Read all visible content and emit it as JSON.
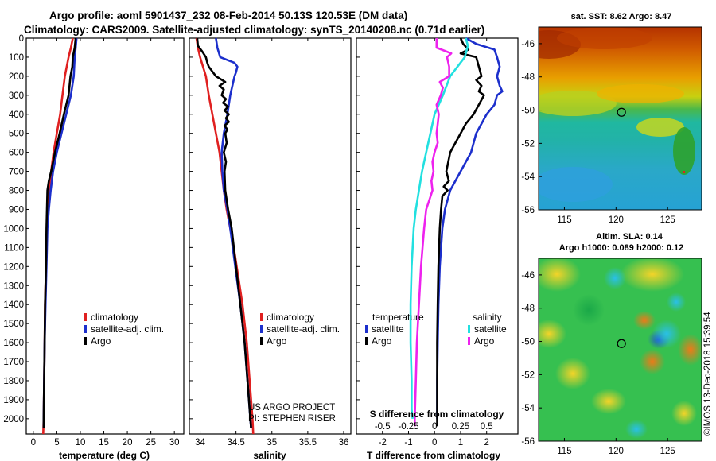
{
  "header": {
    "line1": "Argo profile: aoml 5901437_232 08-Feb-2014 50.13S 120.53E (DM data)",
    "line2": "Climatology: CARS2009. Satellite-adjusted climatology: synTS_20140208.nc (0.71d earlier)"
  },
  "colors": {
    "climatology": "#e02020",
    "satellite": "#1c2fcc",
    "argo": "#000000",
    "satellite_s": "#22e0e0",
    "argo_s": "#ee22ee"
  },
  "depth_axis": {
    "ticks": [
      0,
      100,
      200,
      300,
      400,
      500,
      600,
      700,
      800,
      900,
      1000,
      1100,
      1200,
      1300,
      1400,
      1500,
      1600,
      1700,
      1800,
      1900,
      2000
    ],
    "ylim": [
      0,
      2080
    ]
  },
  "chart_data": [
    {
      "type": "line",
      "id": "temperature",
      "xlabel": "temperature (deg C)",
      "ylabel": "",
      "xlim": [
        -1.5,
        32
      ],
      "xticks": [
        0,
        5,
        10,
        15,
        20,
        25,
        30
      ],
      "xtick_labels": [
        "0",
        "5",
        "10",
        "15",
        "20",
        "25",
        "30"
      ],
      "legend": [
        "climatology",
        "satellite-adj. clim.",
        "Argo"
      ],
      "series": [
        {
          "name": "climatology",
          "color": "#e02020",
          "depth": [
            0,
            50,
            100,
            200,
            300,
            400,
            500,
            600,
            700,
            800,
            900,
            1000,
            1200,
            1400,
            1600,
            1800,
            2000,
            2080
          ],
          "values": [
            8.4,
            8.0,
            7.5,
            6.7,
            6.2,
            5.7,
            5.0,
            4.3,
            3.8,
            3.4,
            3.1,
            2.9,
            2.7,
            2.5,
            2.4,
            2.3,
            2.2,
            2.1
          ]
        },
        {
          "name": "satellite-adj. clim.",
          "color": "#1c2fcc",
          "depth": [
            0,
            50,
            100,
            200,
            300,
            400,
            500,
            600,
            700,
            800,
            900,
            1000,
            1200,
            1400,
            1600,
            1800,
            2000,
            2050
          ],
          "values": [
            9.2,
            9.0,
            8.8,
            8.6,
            8.0,
            7.0,
            6.0,
            5.0,
            4.2,
            3.7,
            3.3,
            3.0,
            2.8,
            2.6,
            2.4,
            2.3,
            2.2,
            2.2
          ]
        },
        {
          "name": "Argo",
          "color": "#000000",
          "depth": [
            0,
            50,
            100,
            150,
            200,
            300,
            400,
            500,
            600,
            700,
            750,
            800,
            900,
            1000,
            1200,
            1400,
            1600,
            1800,
            2000,
            2050
          ],
          "values": [
            9.0,
            8.8,
            8.4,
            8.3,
            7.9,
            7.5,
            6.5,
            5.6,
            4.6,
            3.8,
            3.3,
            3.0,
            2.9,
            2.8,
            2.7,
            2.5,
            2.4,
            2.3,
            2.2,
            2.2
          ]
        }
      ]
    },
    {
      "type": "line",
      "id": "salinity",
      "xlabel": "salinity",
      "ylabel": "",
      "xlim": [
        33.85,
        36.1
      ],
      "xticks": [
        34,
        34.5,
        35,
        35.5,
        36
      ],
      "xtick_labels": [
        "34",
        "34.5",
        "35",
        "35.5",
        "36"
      ],
      "legend": [
        "climatology",
        "satellite-adj. clim.",
        "Argo"
      ],
      "series": [
        {
          "name": "climatology",
          "color": "#e02020",
          "depth": [
            0,
            50,
            100,
            200,
            300,
            400,
            500,
            600,
            700,
            800,
            900,
            1000,
            1100,
            1200,
            1300,
            1400,
            1500,
            1600,
            1700,
            1800,
            1900,
            2000,
            2080
          ],
          "values": [
            33.95,
            33.97,
            34.0,
            34.08,
            34.12,
            34.17,
            34.22,
            34.27,
            34.3,
            34.33,
            34.37,
            34.42,
            34.47,
            34.51,
            34.55,
            34.59,
            34.62,
            34.65,
            34.67,
            34.69,
            34.71,
            34.73,
            34.74
          ]
        },
        {
          "name": "satellite-adj. clim.",
          "color": "#1c2fcc",
          "depth": [
            0,
            50,
            100,
            130,
            150,
            180,
            200,
            300,
            400,
            500,
            600,
            700,
            800,
            900,
            1000,
            1200,
            1400,
            1600,
            1800,
            2000,
            2050
          ],
          "values": [
            34.22,
            34.24,
            34.28,
            34.48,
            34.52,
            34.5,
            34.48,
            34.42,
            34.38,
            34.33,
            34.3,
            34.31,
            34.33,
            34.38,
            34.42,
            34.49,
            34.56,
            34.62,
            34.66,
            34.7,
            34.71
          ]
        },
        {
          "name": "Argo",
          "color": "#000000",
          "depth": [
            0,
            40,
            70,
            100,
            130,
            150,
            180,
            200,
            230,
            250,
            270,
            300,
            320,
            340,
            360,
            380,
            400,
            420,
            440,
            460,
            480,
            500,
            550,
            600,
            650,
            700,
            800,
            900,
            1000,
            1200,
            1400,
            1600,
            1800,
            2000,
            2050
          ],
          "values": [
            33.96,
            33.97,
            34.03,
            34.08,
            34.1,
            34.12,
            34.18,
            34.22,
            34.35,
            34.27,
            34.33,
            34.3,
            34.36,
            34.32,
            34.39,
            34.34,
            34.4,
            34.36,
            34.4,
            34.34,
            34.38,
            34.35,
            34.37,
            34.33,
            34.36,
            34.34,
            34.35,
            34.39,
            34.44,
            34.5,
            34.56,
            34.62,
            34.66,
            34.7,
            34.71
          ]
        }
      ]
    },
    {
      "type": "line",
      "id": "difference",
      "xlabel": "T difference from climatology",
      "ylabel": "",
      "xlim": [
        -3,
        3.2
      ],
      "xticks": [
        -2,
        -1,
        0,
        1,
        2
      ],
      "xtick_labels": [
        "-2",
        "-1",
        "0",
        "1",
        "2"
      ],
      "secondary_xlabel": "S difference from climatology",
      "secondary_xticks": [
        -0.5,
        -0.25,
        0,
        0.25,
        0.5
      ],
      "secondary_xtick_labels": [
        "-0.5",
        "-0.25",
        "0",
        "0.25",
        "0.5"
      ],
      "legend_temperature_title": "temperature",
      "legend_salinity_title": "salinity",
      "legend_temperature": [
        "satellite",
        "Argo"
      ],
      "legend_salinity": [
        "satellite",
        "Argo"
      ],
      "series": [
        {
          "name": "temperature satellite",
          "color": "#1c2fcc",
          "depth": [
            0,
            30,
            60,
            100,
            150,
            200,
            250,
            280,
            300,
            350,
            400,
            500,
            600,
            700,
            800,
            900,
            1000,
            1200,
            1400,
            1600,
            1800,
            1950,
            2000
          ],
          "values": [
            1.2,
            1.6,
            2.3,
            2.4,
            2.5,
            2.4,
            2.5,
            2.6,
            2.4,
            2.3,
            2.0,
            1.6,
            1.4,
            1.0,
            0.6,
            0.4,
            0.3,
            0.2,
            0.15,
            0.12,
            0.1,
            0.1,
            0.1
          ]
        },
        {
          "name": "temperature Argo",
          "color": "#000000",
          "depth": [
            0,
            30,
            60,
            80,
            100,
            150,
            200,
            220,
            250,
            280,
            300,
            350,
            400,
            450,
            500,
            550,
            600,
            700,
            750,
            780,
            800,
            830,
            900,
            1000,
            1200,
            1400,
            1600,
            1800,
            2000,
            2040
          ],
          "values": [
            1.0,
            1.1,
            1.3,
            1.0,
            1.6,
            1.7,
            1.8,
            1.6,
            1.8,
            1.7,
            1.9,
            1.7,
            1.5,
            1.2,
            1.0,
            0.8,
            0.6,
            0.45,
            0.55,
            0.35,
            0.5,
            0.3,
            0.25,
            0.2,
            0.15,
            0.12,
            0.1,
            0.1,
            0.1,
            0.1
          ]
        },
        {
          "name": "salinity satellite",
          "color": "#22e0e0",
          "depth": [
            0,
            40,
            100,
            150,
            200,
            300,
            400,
            500,
            600,
            700,
            800,
            900,
            1000,
            1200,
            1400,
            1600,
            1800,
            1950,
            2000
          ],
          "values": [
            0.3,
            0.32,
            0.29,
            0.22,
            0.15,
            0.08,
            0.0,
            -0.04,
            -0.08,
            -0.12,
            -0.15,
            -0.18,
            -0.2,
            -0.22,
            -0.23,
            -0.23,
            -0.22,
            -0.22,
            -0.21
          ]
        },
        {
          "name": "salinity Argo",
          "color": "#ee22ee",
          "depth": [
            0,
            50,
            80,
            100,
            150,
            200,
            230,
            260,
            300,
            350,
            400,
            450,
            500,
            550,
            600,
            650,
            700,
            750,
            800,
            850,
            900,
            1000,
            1200,
            1400,
            1600,
            1800,
            2000,
            2040
          ],
          "values": [
            0.02,
            0.02,
            0.16,
            0.12,
            0.14,
            0.14,
            0.05,
            0.08,
            0.06,
            0.02,
            0.04,
            0.03,
            0.02,
            0.03,
            0.0,
            -0.02,
            -0.01,
            -0.03,
            -0.02,
            -0.05,
            -0.08,
            -0.1,
            -0.13,
            -0.15,
            -0.17,
            -0.18,
            -0.19,
            -0.19
          ]
        }
      ]
    }
  ],
  "maps": {
    "sst": {
      "title": "sat. SST: 8.62 Argo: 8.47",
      "lat_ticks": [
        "-46",
        "-48",
        "-50",
        "-52",
        "-54",
        "-56"
      ],
      "lon_ticks": [
        "115",
        "120",
        "125"
      ]
    },
    "sla": {
      "title_line1": "Altim. SLA: 0.14",
      "title_line2": "Argo h1000: 0.089 h2000: 0.12",
      "lat_ticks": [
        "-46",
        "-48",
        "-50",
        "-52",
        "-54",
        "-56"
      ],
      "lon_ticks": [
        "115",
        "120",
        "125"
      ]
    },
    "profile_marker": {
      "lon": 120.53,
      "lat": -50.13
    }
  },
  "credits": {
    "project": "US ARGO PROJECT",
    "pi": "PI: STEPHEN RISER",
    "imos": "©IMOS 13-Dec-2018 15:39:54"
  }
}
